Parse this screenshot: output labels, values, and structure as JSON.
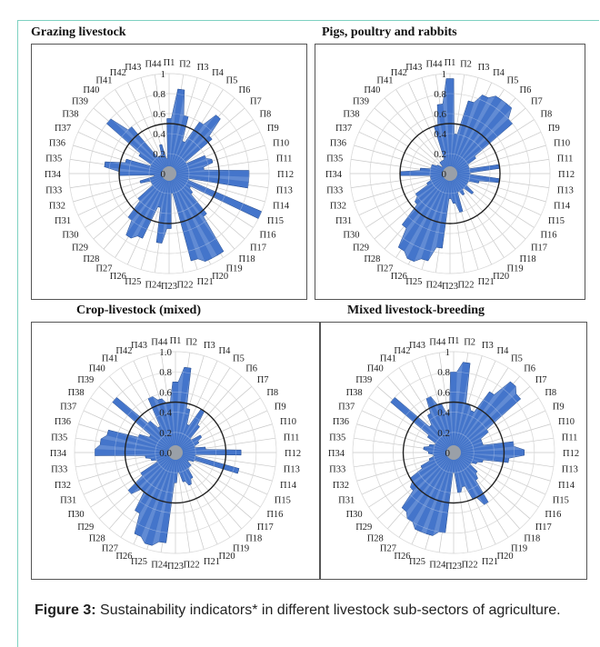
{
  "figure": {
    "caption_label": "Figure 3:",
    "caption_text": "Sustainability indicators* in different livestock sub-sectors of agriculture."
  },
  "chart_data": [
    {
      "type": "radar",
      "title": "Grazing livestock",
      "categories": [
        "П1",
        "П2",
        "П3",
        "П4",
        "П5",
        "П6",
        "П7",
        "П8",
        "П9",
        "П10",
        "П11",
        "П12",
        "П13",
        "П14",
        "П15",
        "П16",
        "П17",
        "П18",
        "П19",
        "П20",
        "П21",
        "П22",
        "П23",
        "П24",
        "П25",
        "П26",
        "П27",
        "П28",
        "П29",
        "П30",
        "П31",
        "П32",
        "П33",
        "П34",
        "П35",
        "П36",
        "П37",
        "П38",
        "П39",
        "П40",
        "П41",
        "П42",
        "П43",
        "П44"
      ],
      "ticks": [
        "0",
        "0.2",
        "0.4",
        "0.6",
        "0.8",
        "1"
      ],
      "rlim": [
        0,
        1
      ],
      "reference_circle": 0.5,
      "values": [
        0.55,
        0.85,
        0.6,
        0.35,
        0.6,
        0.75,
        0.55,
        0.2,
        0.4,
        0.45,
        0.35,
        0.8,
        0.8,
        0.2,
        1.0,
        0.25,
        0.3,
        0.55,
        0.95,
        0.95,
        0.9,
        0.2,
        0.55,
        0.7,
        0.35,
        0.7,
        0.75,
        0.6,
        0.4,
        0.2,
        0.2,
        0.3,
        0.15,
        0.5,
        0.65,
        0.45,
        0.2,
        0.35,
        0.8,
        0.6,
        0.2,
        0.2,
        0.3,
        0.15
      ]
    },
    {
      "type": "radar",
      "title": "Pigs, poultry and rabbits",
      "categories": [
        "П1",
        "П2",
        "П3",
        "П4",
        "П5",
        "П6",
        "П7",
        "П8",
        "П9",
        "П10",
        "П11",
        "П12",
        "П13",
        "П14",
        "П15",
        "П16",
        "П17",
        "П18",
        "П19",
        "П20",
        "П21",
        "П22",
        "П23",
        "П24",
        "П25",
        "П26",
        "П27",
        "П28",
        "П29",
        "П30",
        "П31",
        "П32",
        "П33",
        "П34",
        "П35",
        "П36",
        "П37",
        "П38",
        "П39",
        "П40",
        "П41",
        "П42",
        "П43",
        "П44"
      ],
      "ticks": [
        "0",
        "0.2",
        "0.4",
        "0.6",
        "0.8",
        "1"
      ],
      "rlim": [
        0,
        1
      ],
      "reference_circle": 0.5,
      "values": [
        0.95,
        0.4,
        0.75,
        0.85,
        0.9,
        0.9,
        0.8,
        0.3,
        0.2,
        0.2,
        0.5,
        0.2,
        0.5,
        0.3,
        0.2,
        0.2,
        0.3,
        0.2,
        0.25,
        0.2,
        0.4,
        0.3,
        0.25,
        0.75,
        0.9,
        0.95,
        0.9,
        0.7,
        0.45,
        0.4,
        0.25,
        0.2,
        0.2,
        0.5,
        0.3,
        0.2,
        0.2,
        0.15,
        0.1,
        0.15,
        0.15,
        0.15,
        0.5,
        0.7
      ]
    },
    {
      "type": "radar",
      "title": "Crop-livestock (mixed)",
      "categories": [
        "П1",
        "П2",
        "П3",
        "П4",
        "П5",
        "П6",
        "П7",
        "П8",
        "П9",
        "П10",
        "П11",
        "П12",
        "П13",
        "П14",
        "П15",
        "П16",
        "П17",
        "П18",
        "П19",
        "П20",
        "П21",
        "П22",
        "П23",
        "П24",
        "П25",
        "П26",
        "П27",
        "П28",
        "П29",
        "П30",
        "П31",
        "П32",
        "П33",
        "П34",
        "П35",
        "П36",
        "П37",
        "П38",
        "П39",
        "П40",
        "П41",
        "П42",
        "П43",
        "П44"
      ],
      "ticks": [
        "0.0",
        "0.2",
        "0.4",
        "0.6",
        "0.8",
        "1.0"
      ],
      "rlim": [
        0,
        1
      ],
      "reference_circle": 0.5,
      "values": [
        0.7,
        0.85,
        0.45,
        0.3,
        0.5,
        0.35,
        0.2,
        0.3,
        0.25,
        0.2,
        0.3,
        0.65,
        0.2,
        0.65,
        0.2,
        0.15,
        0.2,
        0.2,
        0.3,
        0.35,
        0.3,
        0.2,
        0.3,
        0.9,
        0.95,
        0.9,
        0.7,
        0.5,
        0.6,
        0.4,
        0.2,
        0.25,
        0.3,
        0.8,
        0.75,
        0.7,
        0.4,
        0.3,
        0.8,
        0.4,
        0.3,
        0.6,
        0.55,
        0.5
      ]
    },
    {
      "type": "radar",
      "title": "Mixed livestock-breeding",
      "categories": [
        "П1",
        "П2",
        "П3",
        "П4",
        "П5",
        "П6",
        "П7",
        "П8",
        "П9",
        "П10",
        "П11",
        "П12",
        "П13",
        "П14",
        "П15",
        "П16",
        "П17",
        "П18",
        "П19",
        "П20",
        "П21",
        "П22",
        "П23",
        "П24",
        "П25",
        "П26",
        "П27",
        "П28",
        "П29",
        "П30",
        "П31",
        "П32",
        "П33",
        "П34",
        "П35",
        "П36",
        "П37",
        "П38",
        "П39",
        "П40",
        "П41",
        "П42",
        "П43",
        "П44"
      ],
      "ticks": [
        "0",
        "0.2",
        "0.4",
        "0.6",
        "0.8",
        "1"
      ],
      "rlim": [
        0,
        1
      ],
      "reference_circle": 0.5,
      "values": [
        0.8,
        0.9,
        0.5,
        0.45,
        0.7,
        0.9,
        0.85,
        0.4,
        0.3,
        0.3,
        0.6,
        0.7,
        0.55,
        0.3,
        0.25,
        0.2,
        0.3,
        0.35,
        0.6,
        0.5,
        0.35,
        0.4,
        0.2,
        0.8,
        0.85,
        0.85,
        0.8,
        0.75,
        0.55,
        0.5,
        0.35,
        0.25,
        0.2,
        0.25,
        0.3,
        0.25,
        0.2,
        0.3,
        0.8,
        0.35,
        0.45,
        0.6,
        0.5,
        0.4
      ]
    }
  ]
}
